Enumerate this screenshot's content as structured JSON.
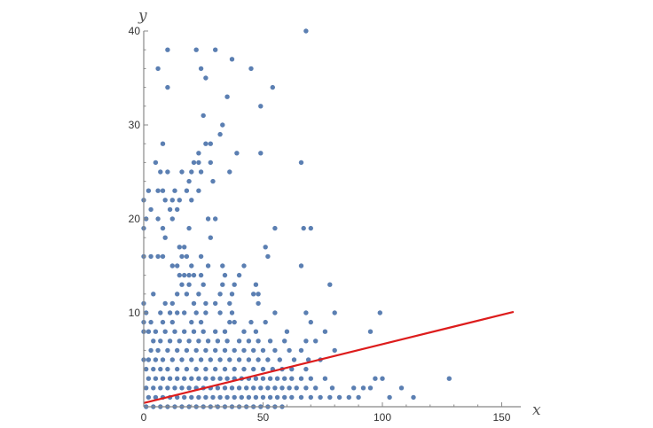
{
  "chart_data": {
    "type": "scatter",
    "xlabel": "x",
    "ylabel": "y",
    "xlim": [
      0,
      158
    ],
    "ylim": [
      0,
      40
    ],
    "x_ticks": [
      0,
      50,
      100,
      150
    ],
    "y_ticks": [
      10,
      20,
      30,
      40
    ],
    "grid": false,
    "colors": {
      "points": "#5b7fb2",
      "fit_line": "#dd1c1c",
      "axis": "#888888"
    },
    "series": [
      {
        "type": "scatter",
        "points": [
          [
            10,
            38
          ],
          [
            22,
            38
          ],
          [
            30,
            38
          ],
          [
            68,
            40
          ],
          [
            6,
            36
          ],
          [
            24,
            36
          ],
          [
            37,
            37
          ],
          [
            45,
            36
          ],
          [
            26,
            35
          ],
          [
            10,
            34
          ],
          [
            54,
            34
          ],
          [
            35,
            33
          ],
          [
            49,
            32
          ],
          [
            25,
            31
          ],
          [
            33,
            30
          ],
          [
            32,
            29
          ],
          [
            8,
            28
          ],
          [
            26,
            28
          ],
          [
            28,
            28
          ],
          [
            23,
            27
          ],
          [
            39,
            27
          ],
          [
            49,
            27
          ],
          [
            5,
            26
          ],
          [
            21,
            26
          ],
          [
            23,
            26
          ],
          [
            28,
            26
          ],
          [
            66,
            26
          ],
          [
            7,
            25
          ],
          [
            10,
            25
          ],
          [
            16,
            25
          ],
          [
            20,
            25
          ],
          [
            24,
            25
          ],
          [
            36,
            25
          ],
          [
            19,
            24
          ],
          [
            29,
            24
          ],
          [
            13,
            23
          ],
          [
            18,
            23
          ],
          [
            23,
            23
          ],
          [
            6,
            23
          ],
          [
            8,
            23
          ],
          [
            15,
            22
          ],
          [
            9,
            22
          ],
          [
            12,
            22
          ],
          [
            2,
            23
          ],
          [
            20,
            22
          ],
          [
            11,
            21
          ],
          [
            14,
            21
          ],
          [
            3,
            21
          ],
          [
            6,
            20
          ],
          [
            12,
            20
          ],
          [
            27,
            20
          ],
          [
            30,
            20
          ],
          [
            1,
            20
          ],
          [
            8,
            19
          ],
          [
            19,
            19
          ],
          [
            55,
            19
          ],
          [
            67,
            19
          ],
          [
            70,
            19
          ],
          [
            9,
            18
          ],
          [
            28,
            18
          ],
          [
            15,
            17
          ],
          [
            17,
            17
          ],
          [
            51,
            17
          ],
          [
            3,
            16
          ],
          [
            6,
            16
          ],
          [
            8,
            16
          ],
          [
            16,
            16
          ],
          [
            18,
            16
          ],
          [
            24,
            16
          ],
          [
            52,
            16
          ],
          [
            12,
            15
          ],
          [
            14,
            15
          ],
          [
            20,
            15
          ],
          [
            27,
            15
          ],
          [
            33,
            15
          ],
          [
            42,
            15
          ],
          [
            66,
            15
          ],
          [
            15,
            14
          ],
          [
            17,
            14
          ],
          [
            19,
            14
          ],
          [
            21,
            14
          ],
          [
            24,
            14
          ],
          [
            34,
            14
          ],
          [
            40,
            14
          ],
          [
            16,
            13
          ],
          [
            19,
            13
          ],
          [
            25,
            13
          ],
          [
            33,
            13
          ],
          [
            38,
            13
          ],
          [
            47,
            13
          ],
          [
            78,
            13
          ],
          [
            4,
            12
          ],
          [
            14,
            12
          ],
          [
            18,
            12
          ],
          [
            23,
            12
          ],
          [
            32,
            12
          ],
          [
            37,
            12
          ],
          [
            46,
            12
          ],
          [
            48,
            12
          ],
          [
            9,
            11
          ],
          [
            12,
            11
          ],
          [
            21,
            11
          ],
          [
            26,
            11
          ],
          [
            30,
            11
          ],
          [
            36,
            11
          ],
          [
            48,
            11
          ],
          [
            1,
            10
          ],
          [
            7,
            10
          ],
          [
            11,
            10
          ],
          [
            14,
            10
          ],
          [
            17,
            10
          ],
          [
            22,
            10
          ],
          [
            26,
            10
          ],
          [
            32,
            10
          ],
          [
            37,
            10
          ],
          [
            55,
            10
          ],
          [
            68,
            10
          ],
          [
            80,
            10
          ],
          [
            99,
            10
          ],
          [
            3,
            9
          ],
          [
            8,
            9
          ],
          [
            12,
            9
          ],
          [
            20,
            9
          ],
          [
            24,
            9
          ],
          [
            36,
            9
          ],
          [
            38,
            9
          ],
          [
            45,
            9
          ],
          [
            51,
            9
          ],
          [
            70,
            9
          ],
          [
            2,
            8
          ],
          [
            5,
            8
          ],
          [
            9,
            8
          ],
          [
            13,
            8
          ],
          [
            17,
            8
          ],
          [
            21,
            8
          ],
          [
            25,
            8
          ],
          [
            30,
            8
          ],
          [
            34,
            8
          ],
          [
            42,
            8
          ],
          [
            47,
            8
          ],
          [
            60,
            8
          ],
          [
            76,
            8
          ],
          [
            95,
            8
          ],
          [
            4,
            7
          ],
          [
            7,
            7
          ],
          [
            11,
            7
          ],
          [
            15,
            7
          ],
          [
            19,
            7
          ],
          [
            23,
            7
          ],
          [
            27,
            7
          ],
          [
            31,
            7
          ],
          [
            35,
            7
          ],
          [
            40,
            7
          ],
          [
            44,
            7
          ],
          [
            48,
            7
          ],
          [
            53,
            7
          ],
          [
            59,
            7
          ],
          [
            68,
            7
          ],
          [
            72,
            7
          ],
          [
            3,
            6
          ],
          [
            6,
            6
          ],
          [
            10,
            6
          ],
          [
            14,
            6
          ],
          [
            18,
            6
          ],
          [
            22,
            6
          ],
          [
            26,
            6
          ],
          [
            30,
            6
          ],
          [
            34,
            6
          ],
          [
            38,
            6
          ],
          [
            42,
            6
          ],
          [
            46,
            6
          ],
          [
            50,
            6
          ],
          [
            55,
            6
          ],
          [
            61,
            6
          ],
          [
            66,
            6
          ],
          [
            80,
            6
          ],
          [
            2,
            5
          ],
          [
            5,
            5
          ],
          [
            8,
            5
          ],
          [
            12,
            5
          ],
          [
            16,
            5
          ],
          [
            20,
            5
          ],
          [
            24,
            5
          ],
          [
            28,
            5
          ],
          [
            32,
            5
          ],
          [
            36,
            5
          ],
          [
            40,
            5
          ],
          [
            44,
            5
          ],
          [
            48,
            5
          ],
          [
            52,
            5
          ],
          [
            57,
            5
          ],
          [
            63,
            5
          ],
          [
            69,
            5
          ],
          [
            74,
            5
          ],
          [
            1,
            4
          ],
          [
            4,
            4
          ],
          [
            7,
            4
          ],
          [
            10,
            4
          ],
          [
            14,
            4
          ],
          [
            18,
            4
          ],
          [
            22,
            4
          ],
          [
            26,
            4
          ],
          [
            30,
            4
          ],
          [
            34,
            4
          ],
          [
            38,
            4
          ],
          [
            42,
            4
          ],
          [
            46,
            4
          ],
          [
            50,
            4
          ],
          [
            54,
            4
          ],
          [
            58,
            4
          ],
          [
            62,
            4
          ],
          [
            68,
            4
          ],
          [
            2,
            3
          ],
          [
            5,
            3
          ],
          [
            8,
            3
          ],
          [
            11,
            3
          ],
          [
            14,
            3
          ],
          [
            17,
            3
          ],
          [
            20,
            3
          ],
          [
            23,
            3
          ],
          [
            26,
            3
          ],
          [
            29,
            3
          ],
          [
            32,
            3
          ],
          [
            35,
            3
          ],
          [
            38,
            3
          ],
          [
            41,
            3
          ],
          [
            44,
            3
          ],
          [
            47,
            3
          ],
          [
            50,
            3
          ],
          [
            53,
            3
          ],
          [
            56,
            3
          ],
          [
            59,
            3
          ],
          [
            62,
            3
          ],
          [
            66,
            3
          ],
          [
            70,
            3
          ],
          [
            76,
            3
          ],
          [
            97,
            3
          ],
          [
            100,
            3
          ],
          [
            128,
            3
          ],
          [
            1,
            2
          ],
          [
            4,
            2
          ],
          [
            7,
            2
          ],
          [
            10,
            2
          ],
          [
            13,
            2
          ],
          [
            16,
            2
          ],
          [
            19,
            2
          ],
          [
            22,
            2
          ],
          [
            25,
            2
          ],
          [
            28,
            2
          ],
          [
            31,
            2
          ],
          [
            34,
            2
          ],
          [
            37,
            2
          ],
          [
            40,
            2
          ],
          [
            43,
            2
          ],
          [
            46,
            2
          ],
          [
            49,
            2
          ],
          [
            52,
            2
          ],
          [
            55,
            2
          ],
          [
            58,
            2
          ],
          [
            61,
            2
          ],
          [
            64,
            2
          ],
          [
            68,
            2
          ],
          [
            72,
            2
          ],
          [
            79,
            2
          ],
          [
            88,
            2
          ],
          [
            92,
            2
          ],
          [
            95,
            2
          ],
          [
            108,
            2
          ],
          [
            2,
            1
          ],
          [
            5,
            1
          ],
          [
            8,
            1
          ],
          [
            11,
            1
          ],
          [
            14,
            1
          ],
          [
            17,
            1
          ],
          [
            20,
            1
          ],
          [
            23,
            1
          ],
          [
            26,
            1
          ],
          [
            29,
            1
          ],
          [
            32,
            1
          ],
          [
            35,
            1
          ],
          [
            38,
            1
          ],
          [
            41,
            1
          ],
          [
            44,
            1
          ],
          [
            47,
            1
          ],
          [
            50,
            1
          ],
          [
            53,
            1
          ],
          [
            56,
            1
          ],
          [
            59,
            1
          ],
          [
            62,
            1
          ],
          [
            66,
            1
          ],
          [
            70,
            1
          ],
          [
            74,
            1
          ],
          [
            78,
            1
          ],
          [
            82,
            1
          ],
          [
            86,
            1
          ],
          [
            90,
            1
          ],
          [
            103,
            1
          ],
          [
            113,
            1
          ],
          [
            1,
            0
          ],
          [
            4,
            0
          ],
          [
            7,
            0
          ],
          [
            10,
            0
          ],
          [
            13,
            0
          ],
          [
            16,
            0
          ],
          [
            19,
            0
          ],
          [
            22,
            0
          ],
          [
            25,
            0
          ],
          [
            28,
            0
          ],
          [
            31,
            0
          ],
          [
            34,
            0
          ],
          [
            37,
            0
          ],
          [
            40,
            0
          ],
          [
            43,
            0
          ],
          [
            46,
            0
          ],
          [
            49,
            0
          ],
          [
            52,
            0
          ],
          [
            55,
            0
          ],
          [
            58,
            0
          ],
          [
            0,
            5
          ],
          [
            0,
            8
          ],
          [
            0,
            9
          ],
          [
            0,
            11
          ],
          [
            0,
            16
          ],
          [
            0,
            19
          ],
          [
            0,
            22
          ]
        ]
      },
      {
        "type": "line",
        "points": [
          [
            0,
            0.4
          ],
          [
            155,
            10.1
          ]
        ]
      }
    ]
  }
}
